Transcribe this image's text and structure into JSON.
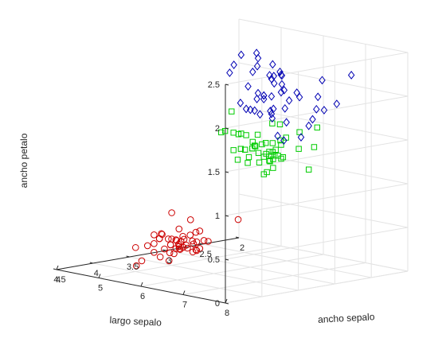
{
  "chart_data": {
    "type": "scatter3d",
    "axes": {
      "x": {
        "label": "largo sepalo",
        "range": [
          4,
          8
        ],
        "ticks": [
          4,
          5,
          6,
          7,
          8
        ]
      },
      "y": {
        "label": "ancho sepalo",
        "range": [
          2,
          4.5
        ],
        "ticks": [
          2,
          2.5,
          3,
          3.5,
          4,
          4.5
        ]
      },
      "z": {
        "label": "ancho petalo",
        "range": [
          0,
          2.5
        ],
        "ticks": [
          0,
          0.5,
          1,
          1.5,
          2,
          2.5
        ]
      }
    },
    "grid": true,
    "series": [
      {
        "marker": "circle",
        "color": "#cc0000",
        "points": [
          [
            5.1,
            3.5,
            0.2
          ],
          [
            4.9,
            3.0,
            0.2
          ],
          [
            4.7,
            3.2,
            0.2
          ],
          [
            4.6,
            3.1,
            0.2
          ],
          [
            5.0,
            3.6,
            0.2
          ],
          [
            5.4,
            3.9,
            0.4
          ],
          [
            4.6,
            3.4,
            0.3
          ],
          [
            5.0,
            3.4,
            0.2
          ],
          [
            4.4,
            2.9,
            0.2
          ],
          [
            4.9,
            3.1,
            0.1
          ],
          [
            5.4,
            3.7,
            0.2
          ],
          [
            4.8,
            3.4,
            0.2
          ],
          [
            4.8,
            3.0,
            0.1
          ],
          [
            4.3,
            3.0,
            0.1
          ],
          [
            5.8,
            4.0,
            0.2
          ],
          [
            5.7,
            4.4,
            0.4
          ],
          [
            5.4,
            3.9,
            0.4
          ],
          [
            5.1,
            3.5,
            0.3
          ],
          [
            5.7,
            3.8,
            0.3
          ],
          [
            5.1,
            3.8,
            0.3
          ],
          [
            5.4,
            3.4,
            0.2
          ],
          [
            5.1,
            3.7,
            0.4
          ],
          [
            4.6,
            3.6,
            0.2
          ],
          [
            5.1,
            3.3,
            0.5
          ],
          [
            4.8,
            3.4,
            0.2
          ],
          [
            5.0,
            3.0,
            0.2
          ],
          [
            5.0,
            3.4,
            0.4
          ],
          [
            5.2,
            3.5,
            0.2
          ],
          [
            5.2,
            3.4,
            0.2
          ],
          [
            4.7,
            3.2,
            0.2
          ],
          [
            4.8,
            3.1,
            0.2
          ],
          [
            5.4,
            3.4,
            0.4
          ],
          [
            5.2,
            4.1,
            0.1
          ],
          [
            5.5,
            4.2,
            0.2
          ],
          [
            4.9,
            3.1,
            0.2
          ],
          [
            5.0,
            3.2,
            0.2
          ],
          [
            5.5,
            3.5,
            0.2
          ],
          [
            4.9,
            3.6,
            0.1
          ],
          [
            4.4,
            3.0,
            0.2
          ],
          [
            5.1,
            3.4,
            0.2
          ],
          [
            5.0,
            3.5,
            0.3
          ],
          [
            4.5,
            2.3,
            0.3
          ],
          [
            4.4,
            3.2,
            0.2
          ],
          [
            5.0,
            3.5,
            0.6
          ],
          [
            5.1,
            3.8,
            0.4
          ],
          [
            4.8,
            3.0,
            0.3
          ],
          [
            5.1,
            3.8,
            0.2
          ],
          [
            4.6,
            3.2,
            0.2
          ],
          [
            5.3,
            3.7,
            0.2
          ],
          [
            5.0,
            3.3,
            0.2
          ]
        ]
      },
      {
        "marker": "square",
        "color": "#00cc00",
        "points": [
          [
            7.0,
            3.2,
            1.4
          ],
          [
            6.4,
            3.2,
            1.5
          ],
          [
            6.9,
            3.1,
            1.5
          ],
          [
            5.5,
            2.3,
            1.3
          ],
          [
            6.5,
            2.8,
            1.5
          ],
          [
            5.7,
            2.8,
            1.3
          ],
          [
            6.3,
            3.3,
            1.6
          ],
          [
            4.9,
            2.4,
            1.0
          ],
          [
            6.6,
            2.9,
            1.3
          ],
          [
            5.2,
            2.7,
            1.4
          ],
          [
            5.0,
            2.0,
            1.0
          ],
          [
            5.9,
            3.0,
            1.5
          ],
          [
            6.0,
            2.2,
            1.0
          ],
          [
            6.1,
            2.9,
            1.4
          ],
          [
            5.6,
            2.9,
            1.3
          ],
          [
            6.7,
            3.1,
            1.4
          ],
          [
            5.6,
            3.0,
            1.5
          ],
          [
            5.8,
            2.7,
            1.0
          ],
          [
            6.2,
            2.2,
            1.5
          ],
          [
            5.6,
            2.5,
            1.1
          ],
          [
            5.9,
            3.2,
            1.8
          ],
          [
            6.1,
            2.8,
            1.3
          ],
          [
            6.3,
            2.5,
            1.5
          ],
          [
            6.1,
            2.8,
            1.2
          ],
          [
            6.4,
            2.9,
            1.3
          ],
          [
            6.6,
            3.0,
            1.4
          ],
          [
            6.8,
            2.8,
            1.4
          ],
          [
            6.7,
            3.0,
            1.7
          ],
          [
            6.0,
            2.9,
            1.5
          ],
          [
            5.7,
            2.6,
            1.0
          ],
          [
            5.5,
            2.4,
            1.1
          ],
          [
            5.5,
            2.4,
            1.0
          ],
          [
            5.8,
            2.7,
            1.2
          ],
          [
            6.0,
            2.7,
            1.6
          ],
          [
            5.4,
            3.0,
            1.5
          ],
          [
            6.0,
            3.4,
            1.6
          ],
          [
            6.7,
            3.1,
            1.5
          ],
          [
            6.3,
            2.3,
            1.3
          ],
          [
            5.6,
            3.0,
            1.3
          ],
          [
            5.5,
            2.5,
            1.3
          ],
          [
            5.5,
            2.6,
            1.2
          ],
          [
            6.1,
            3.0,
            1.4
          ],
          [
            5.8,
            2.6,
            1.2
          ],
          [
            5.0,
            2.3,
            1.0
          ],
          [
            5.6,
            2.7,
            1.3
          ],
          [
            5.7,
            3.0,
            1.2
          ],
          [
            5.7,
            2.9,
            1.3
          ],
          [
            6.2,
            2.9,
            1.3
          ],
          [
            5.1,
            2.5,
            1.1
          ],
          [
            5.7,
            2.8,
            1.3
          ]
        ]
      },
      {
        "marker": "diamond",
        "color": "#0000b3",
        "points": [
          [
            6.3,
            3.3,
            2.5
          ],
          [
            5.8,
            2.7,
            1.9
          ],
          [
            7.1,
            3.0,
            2.1
          ],
          [
            6.3,
            2.9,
            1.8
          ],
          [
            6.5,
            3.0,
            2.2
          ],
          [
            7.6,
            3.0,
            2.1
          ],
          [
            4.9,
            2.5,
            1.7
          ],
          [
            7.3,
            2.9,
            1.8
          ],
          [
            6.7,
            2.5,
            1.8
          ],
          [
            7.2,
            3.6,
            2.5
          ],
          [
            6.5,
            3.2,
            2.0
          ],
          [
            6.4,
            2.7,
            1.9
          ],
          [
            6.8,
            3.0,
            2.1
          ],
          [
            5.7,
            2.5,
            2.0
          ],
          [
            5.8,
            2.8,
            2.4
          ],
          [
            6.4,
            3.2,
            2.3
          ],
          [
            6.5,
            3.0,
            1.8
          ],
          [
            7.7,
            3.8,
            2.2
          ],
          [
            7.7,
            2.6,
            2.3
          ],
          [
            6.0,
            2.2,
            1.5
          ],
          [
            6.9,
            3.2,
            2.3
          ],
          [
            5.6,
            2.8,
            2.0
          ],
          [
            7.7,
            2.8,
            2.0
          ],
          [
            6.3,
            2.7,
            1.8
          ],
          [
            6.7,
            3.3,
            2.1
          ],
          [
            7.2,
            3.2,
            1.8
          ],
          [
            6.2,
            2.8,
            1.8
          ],
          [
            6.1,
            3.0,
            1.8
          ],
          [
            6.4,
            2.8,
            2.1
          ],
          [
            7.2,
            3.0,
            1.6
          ],
          [
            7.4,
            2.8,
            1.9
          ],
          [
            7.9,
            3.8,
            2.0
          ],
          [
            6.4,
            2.8,
            2.2
          ],
          [
            6.3,
            2.8,
            1.5
          ],
          [
            6.1,
            2.6,
            1.4
          ],
          [
            7.7,
            3.0,
            2.3
          ],
          [
            6.3,
            3.4,
            2.4
          ],
          [
            6.4,
            3.1,
            1.8
          ],
          [
            6.0,
            3.0,
            1.8
          ],
          [
            6.9,
            3.1,
            2.1
          ],
          [
            6.7,
            3.1,
            2.4
          ],
          [
            6.9,
            3.1,
            2.3
          ],
          [
            5.8,
            2.7,
            1.9
          ],
          [
            6.8,
            3.2,
            2.3
          ],
          [
            6.7,
            3.3,
            2.5
          ],
          [
            6.7,
            3.0,
            2.3
          ],
          [
            6.3,
            2.5,
            1.9
          ],
          [
            6.5,
            3.0,
            2.0
          ],
          [
            6.2,
            3.4,
            2.3
          ],
          [
            5.9,
            3.0,
            1.8
          ]
        ]
      }
    ]
  }
}
